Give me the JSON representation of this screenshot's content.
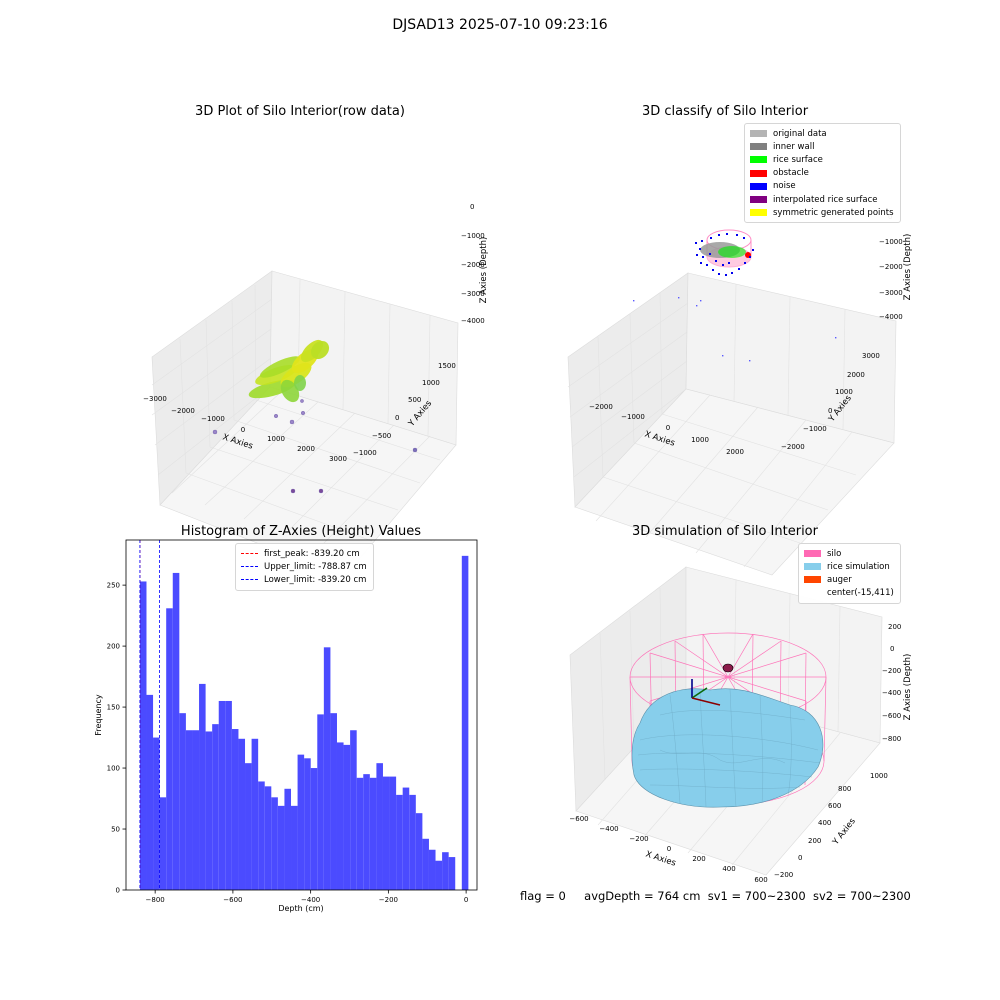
{
  "suptitle": "DJSAD13 2025-07-10 09:23:16",
  "footer": {
    "flag": "flag = 0",
    "avg_depth": "avgDepth = 764 cm",
    "sv1": "sv1 = 700~2300",
    "sv2": "sv2 = 700~2300"
  },
  "colors": {
    "hist_bar": "#4b4bff",
    "first_peak": "#ff0000",
    "limit_line": "#0000ff",
    "silo": "#ff69b4",
    "rice_simulation": "#87ceeb",
    "auger": "#ff4500"
  },
  "panels": {
    "raw": {
      "title": "3D Plot of Silo Interior(row data)",
      "xlabel": "X Axies",
      "ylabel": "Y Axies",
      "zlabel": "Z Axies (Depth)",
      "xticks": [
        "−3000",
        "−2000",
        "−1000",
        "0",
        "1000",
        "2000",
        "3000"
      ],
      "yticks": [
        "−1000",
        "−500",
        "0",
        "500",
        "1000",
        "1500"
      ],
      "zticks": [
        "0",
        "−1000",
        "−2000",
        "−3000",
        "−4000"
      ]
    },
    "classify": {
      "title": "3D classify of Silo Interior",
      "xlabel": "X Axies",
      "ylabel": "Y Axies",
      "zlabel": "Z Axies (Depth)",
      "xticks": [
        "−2000",
        "−1000",
        "0",
        "1000",
        "2000"
      ],
      "yticks": [
        "−2000",
        "−1000",
        "0",
        "1000",
        "2000",
        "3000"
      ],
      "zticks": [
        "0",
        "−1000",
        "−2000",
        "−3000",
        "−4000"
      ],
      "legend": [
        {
          "label": "original data",
          "color": "#b4b4b4"
        },
        {
          "label": "inner wall",
          "color": "#808080"
        },
        {
          "label": "rice surface",
          "color": "#00ff00"
        },
        {
          "label": "obstacle",
          "color": "#ff0000"
        },
        {
          "label": "noise",
          "color": "#0000ff"
        },
        {
          "label": "interpolated rice surface",
          "color": "#800080"
        },
        {
          "label": "symmetric generated points",
          "color": "#ffff00"
        }
      ]
    },
    "simulation": {
      "title": "3D simulation of Silo Interior",
      "xlabel": "X Axies",
      "ylabel": "Y Axies",
      "zlabel": "Z Axies (Depth)",
      "xticks": [
        "−600",
        "−400",
        "−200",
        "0",
        "200",
        "400",
        "600"
      ],
      "yticks": [
        "−200",
        "0",
        "200",
        "400",
        "600",
        "800",
        "1000"
      ],
      "zticks": [
        "200",
        "0",
        "−200",
        "−400",
        "−600",
        "−800"
      ],
      "legend": [
        {
          "label": "silo",
          "color": "#ff69b4"
        },
        {
          "label": "rice simulation",
          "color": "#87ceeb"
        },
        {
          "label": "auger",
          "color": "#ff4500"
        },
        {
          "label": "center(-15,411)",
          "color": ""
        }
      ]
    }
  },
  "chart_data": {
    "type": "bar",
    "title": "Histogram of Z-Axies (Height) Values",
    "xlabel": "Depth (cm)",
    "ylabel": "Frequency",
    "xlim": [
      -875,
      28
    ],
    "ylim": [
      0,
      287
    ],
    "xticks": [
      -800,
      -600,
      -400,
      -200,
      0
    ],
    "xtick_labels": [
      "−800",
      "−600",
      "−400",
      "−200",
      "0"
    ],
    "yticks": [
      0,
      50,
      100,
      150,
      200,
      250
    ],
    "bin_start": -839.2,
    "bin_width": 16.9,
    "values": [
      253,
      160,
      125,
      76,
      231,
      260,
      145,
      131,
      131,
      169,
      130,
      136,
      155,
      155,
      132,
      124,
      104,
      124,
      89,
      85,
      76,
      69,
      83,
      69,
      111,
      108,
      100,
      144,
      199,
      145,
      121,
      119,
      131,
      92,
      95,
      92,
      104,
      93,
      93,
      78,
      84,
      78,
      63,
      42,
      33,
      24,
      31,
      27,
      0,
      274
    ],
    "vlines": [
      {
        "label": "first_peak: -839.20 cm",
        "x": -839.2,
        "color": "#ff0000"
      },
      {
        "label": "Upper_limit: -788.87 cm",
        "x": -788.87,
        "color": "#0000ff"
      },
      {
        "label": "Lower_limit: -839.20 cm",
        "x": -839.2,
        "color": "#0000ff"
      }
    ],
    "legend_position": "top-center"
  }
}
